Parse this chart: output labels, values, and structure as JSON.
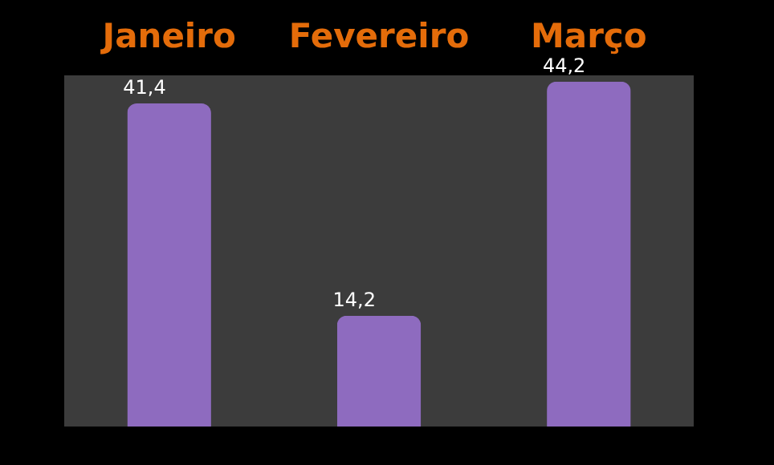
{
  "chart_data": {
    "type": "bar",
    "categories": [
      "Janeiro",
      "Fevereiro",
      "Março"
    ],
    "values": [
      41.4,
      14.2,
      44.2
    ],
    "value_labels": [
      "41,4",
      "14,2",
      "44,2"
    ],
    "color": "#8e6bbf"
  }
}
